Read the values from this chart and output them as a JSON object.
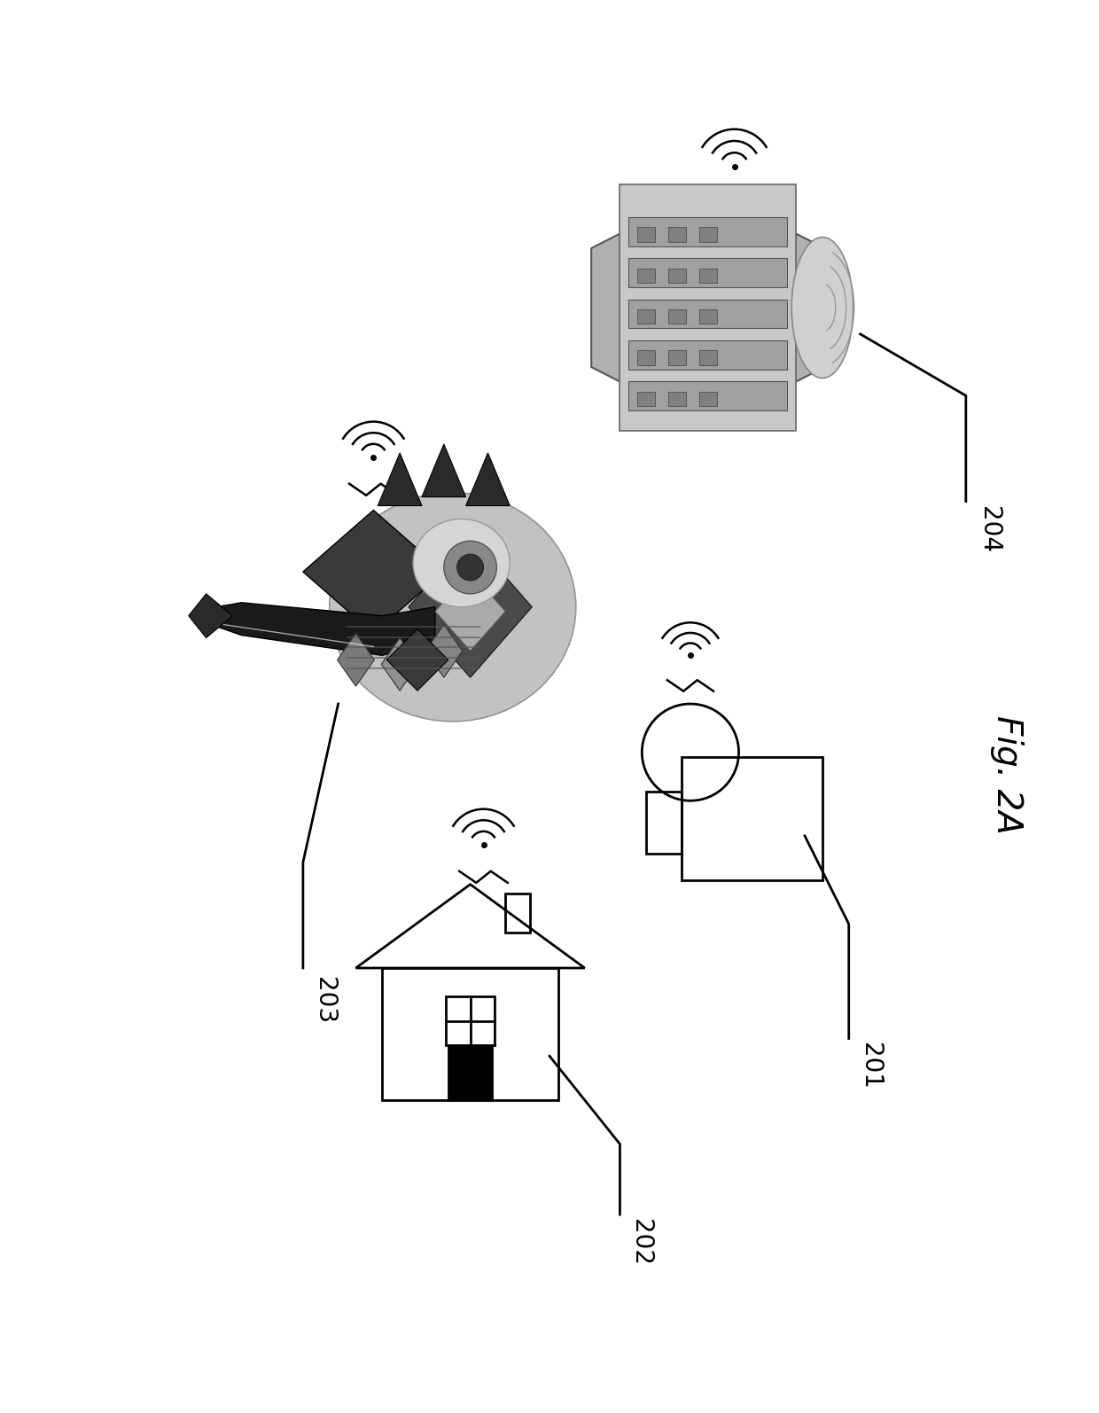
{
  "fig_label": "Fig. 2A",
  "ref_201": "201",
  "ref_202": "202",
  "ref_203": "203",
  "ref_204": "204",
  "bg_color": "#ffffff",
  "line_color": "#000000",
  "fig_width": 12.4,
  "fig_height": 15.94,
  "label_fontsize": 20,
  "figlabel_fontsize": 28
}
